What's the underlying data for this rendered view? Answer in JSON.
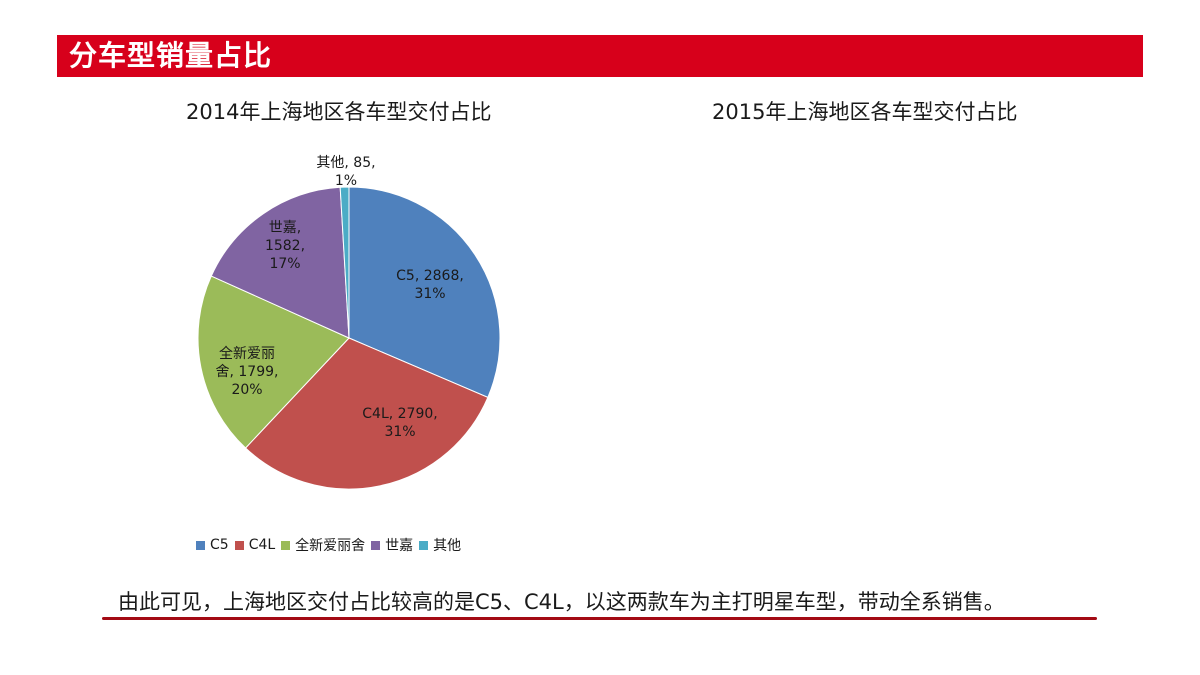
{
  "header": {
    "title": "分车型销量占比"
  },
  "charts": {
    "left_title": "2014年上海地区各车型交付占比",
    "right_title": "2015年上海地区各车型交付占比"
  },
  "chart_data": [
    {
      "type": "pie",
      "title": "2014年上海地区各车型交付占比",
      "categories": [
        "C5",
        "C4L",
        "全新爱丽舍",
        "世嘉",
        "其他"
      ],
      "values": [
        2868,
        2790,
        1799,
        1582,
        85
      ],
      "percent_labels": [
        "31%",
        "31%",
        "20%",
        "17%",
        "1%"
      ],
      "data_labels": [
        [
          "C5, 2868,",
          "31%"
        ],
        [
          "C4L, 2790,",
          "31%"
        ],
        [
          "全新爱丽",
          "舍, 1799,",
          "20%"
        ],
        [
          "世嘉,",
          "1582,",
          "17%"
        ],
        [
          "其他, 85,",
          "1%"
        ]
      ],
      "colors": [
        "#4f81bd",
        "#c0504d",
        "#9bbb59",
        "#8064a2",
        "#4bacc6"
      ],
      "legend_position": "bottom",
      "start_angle_deg": 0,
      "direction": "clockwise"
    },
    {
      "type": "pie",
      "title": "2015年上海地区各车型交付占比",
      "categories": [],
      "values": []
    }
  ],
  "conclusion": "由此可见，上海地区交付占比较高的是C5、C4L，以这两款车为主打明星车型，带动全系销售。"
}
